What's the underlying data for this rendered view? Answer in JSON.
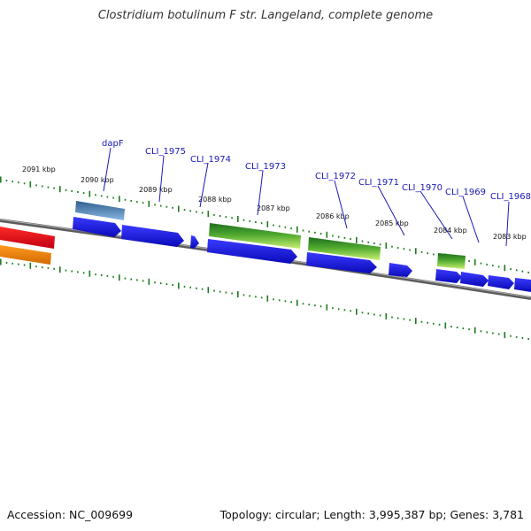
{
  "title": "Clostridium botulinum F str. Langeland, complete genome",
  "footer": {
    "accession": "Accession: NC_009699",
    "summary": "Topology: circular; Length: 3,995,387 bp; Genes: 3,781"
  },
  "colors": {
    "background": "#ffffff",
    "backbone": "#888888",
    "tick": "#1f7a1f",
    "gene_label": "#1a1ab8",
    "blue_feature": "#1414e6",
    "green_feature": "#3c9a2a",
    "steelblue_feature": "#3f6fa0",
    "red_feature": "#e8141e",
    "orange_feature": "#f08a10"
  },
  "kbp_labels": [
    "2091 kbp",
    "2090 kbp",
    "2089 kbp",
    "2088 kbp",
    "2087 kbp",
    "2086 kbp",
    "2085 kbp",
    "2084 kbp",
    "2083 kbp"
  ],
  "gene_labels": [
    "dapF",
    "CLI_1975",
    "CLI_1974",
    "CLI_1973",
    "CLI_1972",
    "CLI_1971",
    "CLI_1970",
    "CLI_1969",
    "CLI_1968"
  ]
}
